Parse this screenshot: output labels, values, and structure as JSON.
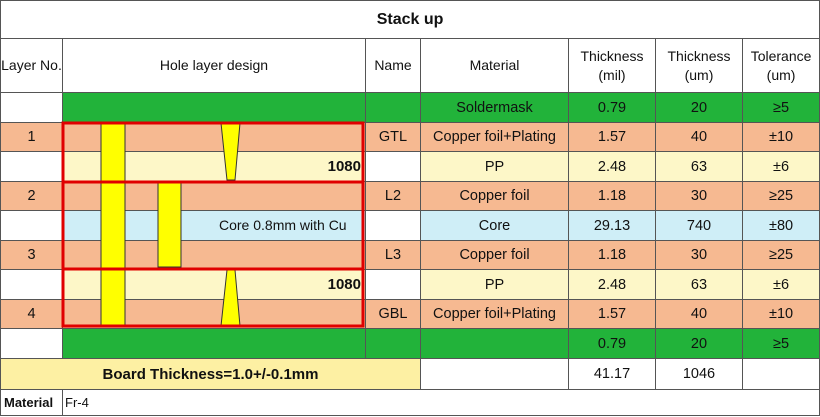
{
  "title": "Stack up",
  "headers": {
    "layer_no": "Layer No.",
    "hole_design": "Hole layer design",
    "name": "Name",
    "material": "Material",
    "thickness_mil": "Thickness (mil)",
    "thickness_um": "Thickness (um)",
    "tolerance": "Tolerance (um)"
  },
  "rows": [
    {
      "layer": "",
      "name": "",
      "material": "Soldermask",
      "mil": "0.79",
      "um": "20",
      "tol": "≥5"
    },
    {
      "layer": "1",
      "name": "GTL",
      "material": "Copper foil+Plating",
      "mil": "1.57",
      "um": "40",
      "tol": "±10"
    },
    {
      "layer": "",
      "name": "",
      "material": "PP",
      "mil": "2.48",
      "um": "63",
      "tol": "±6"
    },
    {
      "layer": "2",
      "name": "L2",
      "material": "Copper foil",
      "mil": "1.18",
      "um": "30",
      "tol": "≥25"
    },
    {
      "layer": "",
      "name": "",
      "material": "Core",
      "mil": "29.13",
      "um": "740",
      "tol": "±80"
    },
    {
      "layer": "3",
      "name": "L3",
      "material": "Copper foil",
      "mil": "1.18",
      "um": "30",
      "tol": "≥25"
    },
    {
      "layer": "",
      "name": "",
      "material": "PP",
      "mil": "2.48",
      "um": "63",
      "tol": "±6"
    },
    {
      "layer": "4",
      "name": "GBL",
      "material": "Copper foil+Plating",
      "mil": "1.57",
      "um": "40",
      "tol": "±10"
    },
    {
      "layer": "",
      "name": "",
      "material": "",
      "mil": "0.79",
      "um": "20",
      "tol": "≥5"
    }
  ],
  "pp_labels": {
    "top": "1080",
    "bottom": "1080"
  },
  "core_label": "Core 0.8mm with Cu",
  "board_thickness": "Board Thickness=1.0+/-0.1mm",
  "totals": {
    "mil": "41.17",
    "um": "1046"
  },
  "material_label": "Material",
  "material_value": "Fr-4",
  "colors": {
    "soldermask": "#22b33a",
    "copper": "#f6b991",
    "prepreg": "#fdf7c8",
    "core": "#cfeef7",
    "via": "#ffff00",
    "outline": "#e00000"
  }
}
